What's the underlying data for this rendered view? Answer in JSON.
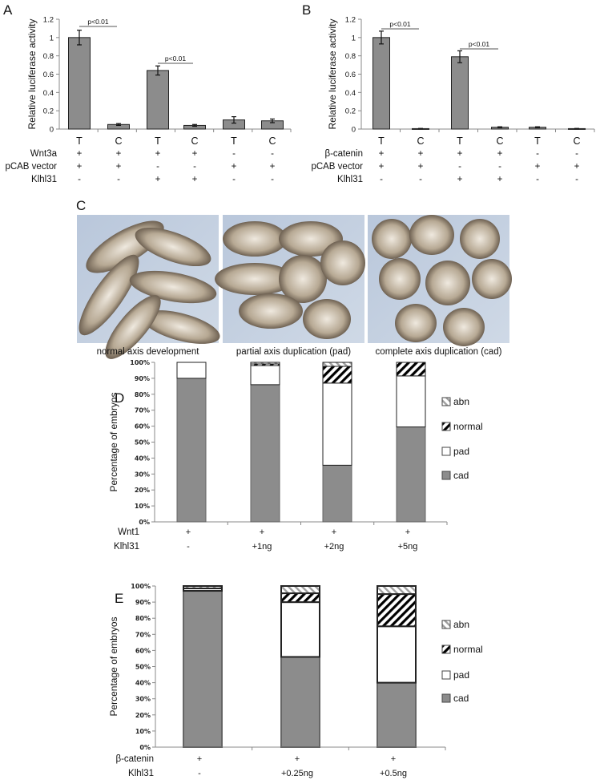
{
  "panels": {
    "A": "A",
    "B": "B",
    "C": "C",
    "D": "D",
    "E": "E"
  },
  "colors": {
    "bar": "#8c8c8c",
    "axis": "#888888",
    "normal_hatch": "#000000",
    "abn_hatch": "#a0a0a0"
  },
  "photos": {
    "captions": [
      "normal axis development",
      "partial axis duplication (pad)",
      "complete axis duplication (cad)"
    ]
  },
  "chart_data": [
    {
      "id": "A",
      "type": "bar",
      "ylabel": "Relative luciferase activity",
      "ylim": [
        0,
        1.2
      ],
      "yticks": [
        "0",
        "0.2",
        "0.4",
        "0.6",
        "0.8",
        "1",
        "1.2"
      ],
      "categories": [
        "T",
        "C",
        "T",
        "C",
        "T",
        "C"
      ],
      "values": [
        1.0,
        0.05,
        0.64,
        0.04,
        0.1,
        0.09
      ],
      "errors": [
        0.08,
        0.01,
        0.05,
        0.01,
        0.035,
        0.02
      ],
      "conditions": [
        {
          "label": "Wnt3a",
          "values": [
            "+",
            "+",
            "+",
            "+",
            "-",
            "-"
          ]
        },
        {
          "label": "pCAB vector",
          "values": [
            "+",
            "+",
            "-",
            "-",
            "+",
            "+"
          ]
        },
        {
          "label": "Klhl31",
          "values": [
            "-",
            "-",
            "+",
            "+",
            "-",
            "-"
          ]
        }
      ],
      "annotations": [
        {
          "text": "p<0.01",
          "from": 0,
          "to": 1
        },
        {
          "text": "p<0.01",
          "from": 2,
          "to": 3
        }
      ]
    },
    {
      "id": "B",
      "type": "bar",
      "ylabel": "Relative luciferase activity",
      "ylim": [
        0,
        1.2
      ],
      "yticks": [
        "0",
        "0.2",
        "0.4",
        "0.6",
        "0.8",
        "1",
        "1.2"
      ],
      "categories": [
        "T",
        "C",
        "T",
        "C",
        "T",
        "C"
      ],
      "values": [
        1.0,
        0.005,
        0.79,
        0.02,
        0.02,
        0.005
      ],
      "errors": [
        0.07,
        0.002,
        0.065,
        0.005,
        0.005,
        0.002
      ],
      "conditions": [
        {
          "label": "β-catenin",
          "values": [
            "+",
            "+",
            "+",
            "+",
            "-",
            "-"
          ]
        },
        {
          "label": "pCAB vector",
          "values": [
            "+",
            "+",
            "-",
            "-",
            "+",
            "+"
          ]
        },
        {
          "label": "Klhl31",
          "values": [
            "-",
            "-",
            "+",
            "+",
            "-",
            "-"
          ]
        }
      ],
      "annotations": [
        {
          "text": "p<0.01",
          "from": 0,
          "to": 1
        },
        {
          "text": "p<0.01",
          "from": 2,
          "to": 3
        }
      ]
    },
    {
      "id": "D",
      "type": "bar",
      "stacked": true,
      "ylabel": "Percentage of embryos",
      "ylim": [
        0,
        100
      ],
      "yticks": [
        "0%",
        "10%",
        "20%",
        "30%",
        "40%",
        "50%",
        "60%",
        "70%",
        "80%",
        "90%",
        "100%"
      ],
      "legend_position": "right",
      "series": [
        {
          "name": "cad",
          "values": [
            90,
            86,
            35.5,
            59.5
          ]
        },
        {
          "name": "pad",
          "values": [
            10,
            12,
            51.5,
            32
          ]
        },
        {
          "name": "normal",
          "values": [
            0,
            1,
            10.5,
            8.5
          ]
        },
        {
          "name": "abn",
          "values": [
            0,
            1,
            2.5,
            0
          ]
        }
      ],
      "conditions": [
        {
          "label": "Wnt1",
          "values": [
            "+",
            "+",
            "+",
            "+"
          ]
        },
        {
          "label": "Klhl31",
          "values": [
            "-",
            "+1ng",
            "+2ng",
            "+5ng"
          ]
        }
      ]
    },
    {
      "id": "E",
      "type": "bar",
      "stacked": true,
      "ylabel": "Percentage of embryos",
      "ylim": [
        0,
        100
      ],
      "yticks": [
        "0%",
        "10%",
        "20%",
        "30%",
        "40%",
        "50%",
        "60%",
        "70%",
        "80%",
        "90%",
        "100%"
      ],
      "legend_position": "right",
      "series": [
        {
          "name": "cad",
          "values": [
            97,
            56,
            40
          ]
        },
        {
          "name": "pad",
          "values": [
            1.5,
            34,
            35
          ]
        },
        {
          "name": "normal",
          "values": [
            0,
            5.5,
            20
          ]
        },
        {
          "name": "abn",
          "values": [
            1.5,
            4.5,
            5
          ]
        }
      ],
      "conditions": [
        {
          "label": "β-catenin",
          "values": [
            "+",
            "+",
            "+"
          ]
        },
        {
          "label": "Klhl31",
          "values": [
            "-",
            "+0.25ng",
            "+0.5ng"
          ]
        }
      ]
    }
  ]
}
